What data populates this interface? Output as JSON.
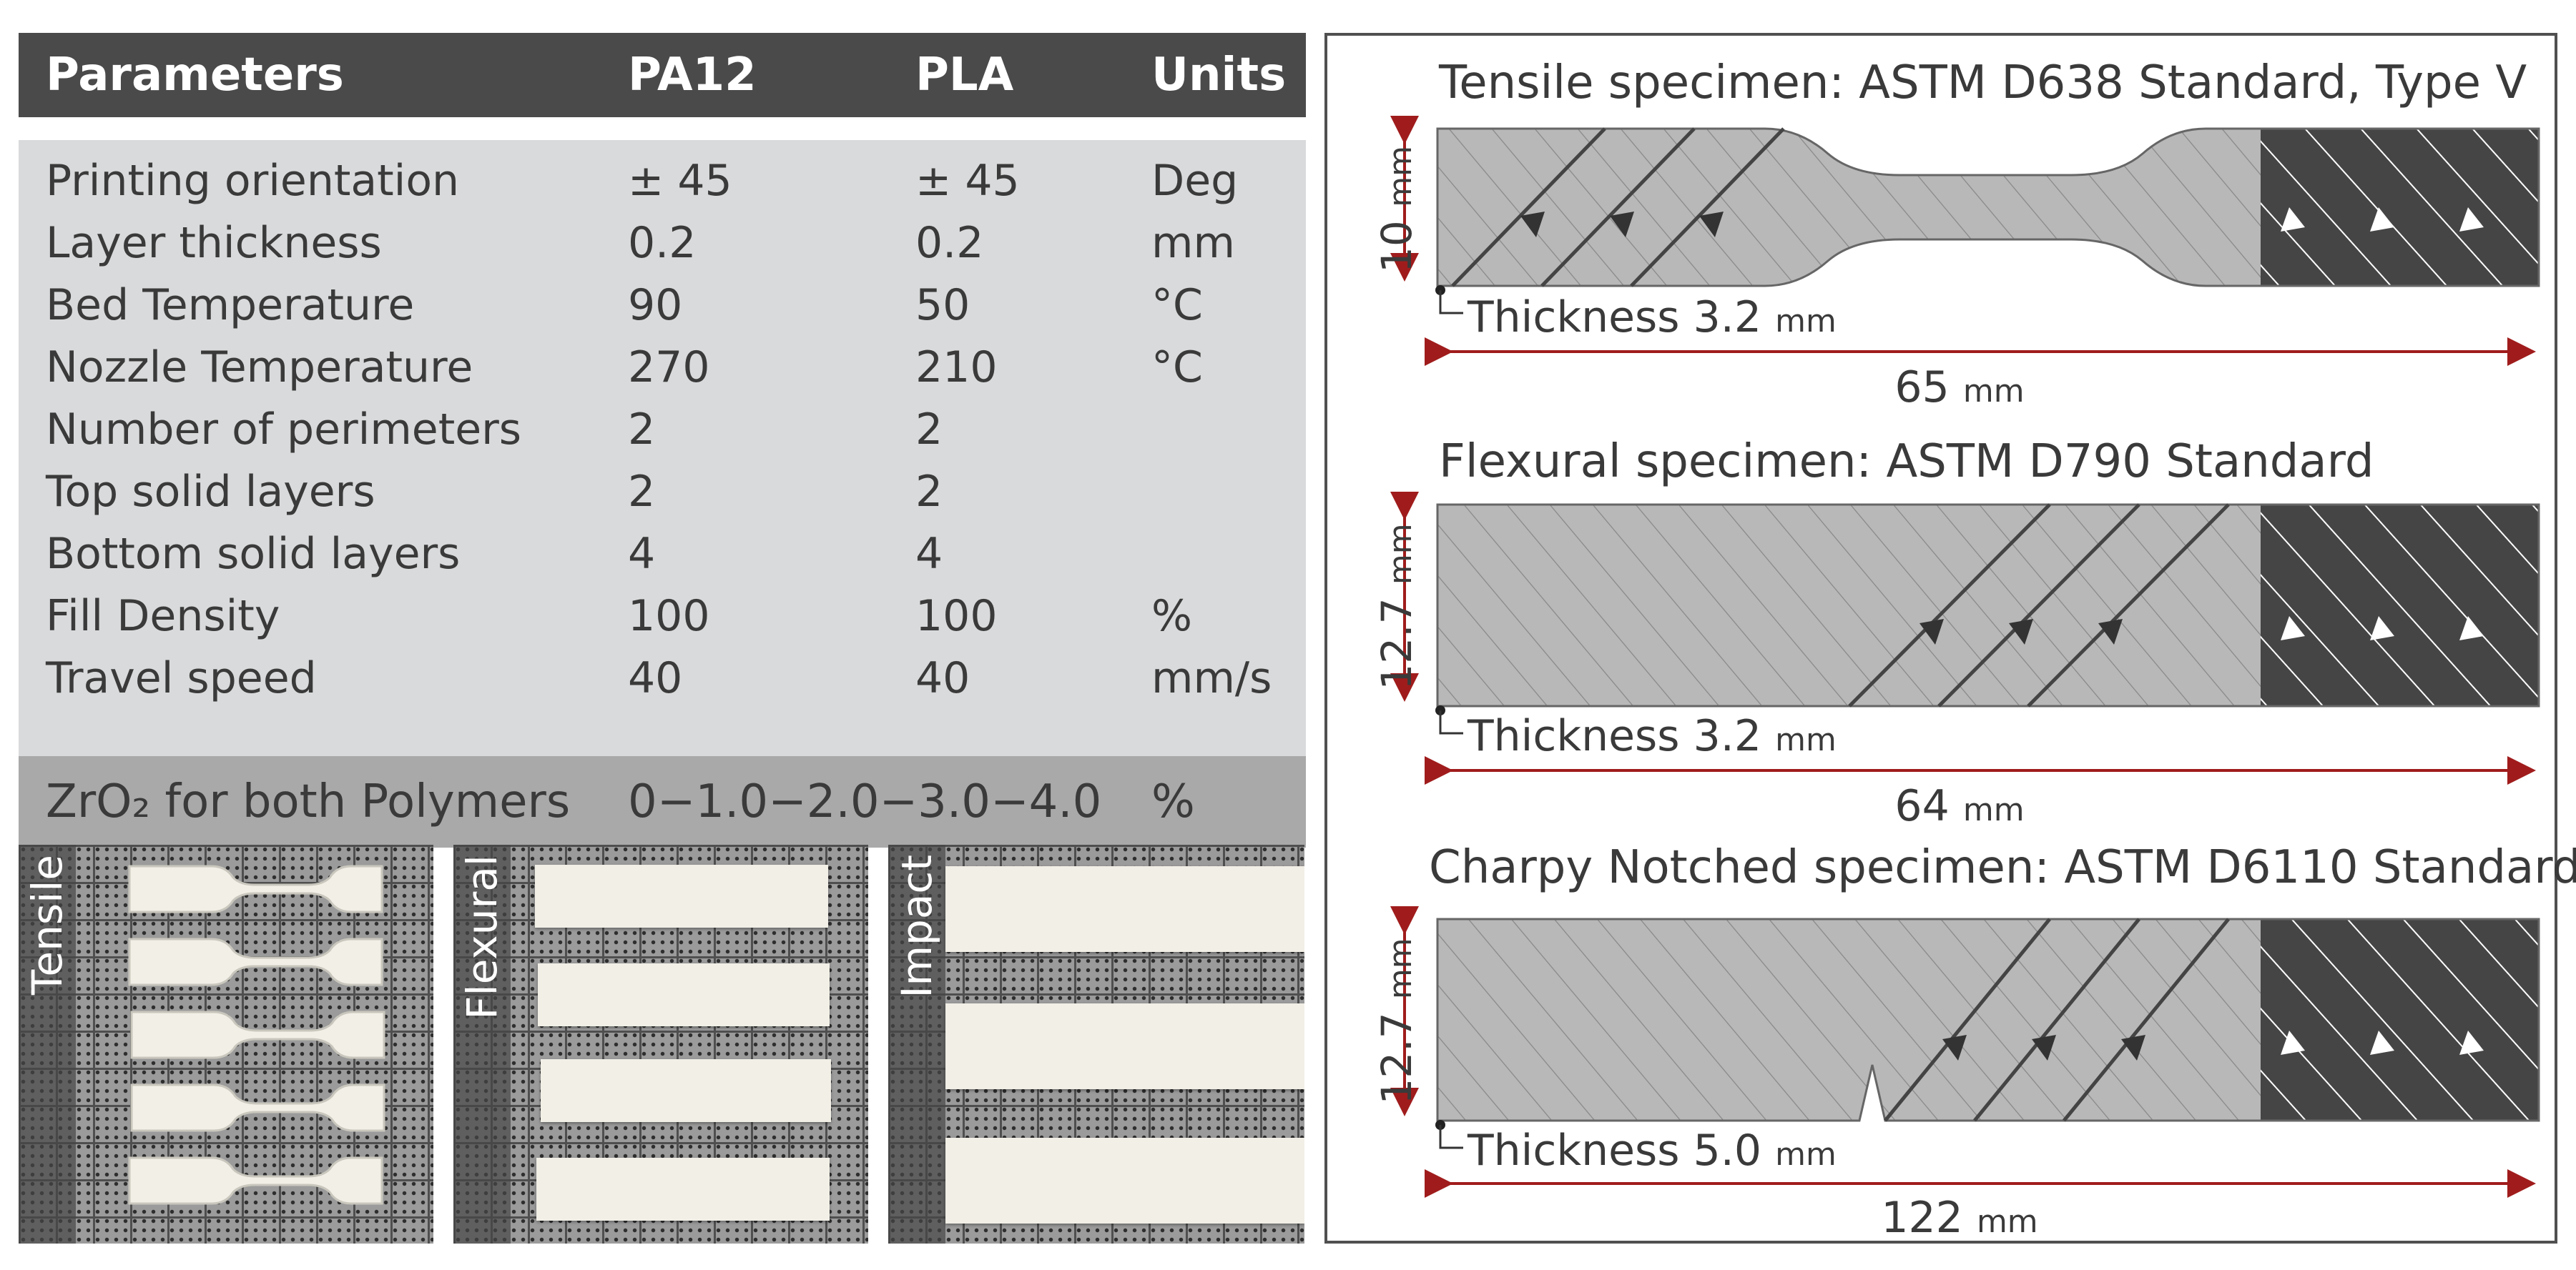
{
  "table": {
    "headers": [
      "Parameters",
      "PA12",
      "PLA",
      "Units"
    ],
    "rows": [
      {
        "param": "Printing orientation",
        "pa12": "± 45",
        "pla": "± 45",
        "unit": "Deg"
      },
      {
        "param": "Layer thickness",
        "pa12": "0.2",
        "pla": "0.2",
        "unit": "mm"
      },
      {
        "param": "Bed Temperature",
        "pa12": "90",
        "pla": "50",
        "unit": "°C"
      },
      {
        "param": "Nozzle Temperature",
        "pa12": "270",
        "pla": "210",
        "unit": "°C"
      },
      {
        "param": "Number of perimeters",
        "pa12": "2",
        "pla": "2",
        "unit": ""
      },
      {
        "param": "Top solid layers",
        "pa12": "2",
        "pla": "2",
        "unit": ""
      },
      {
        "param": "Bottom solid layers",
        "pa12": "4",
        "pla": "4",
        "unit": ""
      },
      {
        "param": "Fill Density",
        "pa12": "100",
        "pla": "100",
        "unit": "%"
      },
      {
        "param": "Travel speed",
        "pa12": "40",
        "pla": "40",
        "unit": "mm/s"
      }
    ],
    "footer": {
      "param": "ZrO₂ for both Polymers",
      "value": "0−1.0−2.0−3.0−4.0",
      "unit": "%"
    }
  },
  "photos": [
    {
      "label": "Tensile"
    },
    {
      "label": "Flexural"
    },
    {
      "label": "Impact"
    }
  ],
  "diagram": {
    "specimens": [
      {
        "title": "Tensile specimen: ASTM D638 Standard, Type V",
        "width_value": "10",
        "width_unit": "mm",
        "thickness_label": "Thickness 3.2",
        "thickness_unit": "mm",
        "length_value": "65",
        "length_unit": "mm"
      },
      {
        "title": "Flexural specimen: ASTM D790 Standard",
        "width_value": "12.7",
        "width_unit": "mm",
        "thickness_label": "Thickness 3.2",
        "thickness_unit": "mm",
        "length_value": "64",
        "length_unit": "mm"
      },
      {
        "title": "Charpy Notched specimen: ASTM D6110 Standard",
        "width_value": "12.7",
        "width_unit": "mm",
        "thickness_label": "Thickness 5.0",
        "thickness_unit": "mm",
        "length_value": "122",
        "length_unit": "mm"
      }
    ],
    "colors": {
      "arrow": "#a01c1c",
      "body": "#b8b8b8",
      "dark": "#454545",
      "hatch": "#8a8a8a"
    }
  }
}
